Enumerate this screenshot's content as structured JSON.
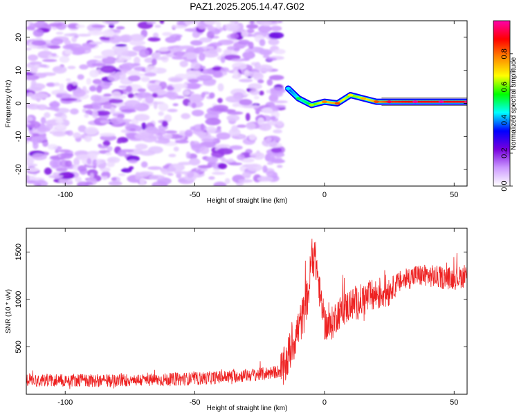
{
  "title": "PAZ1.2025.205.14.47.G02",
  "chart_data": [
    {
      "type": "heatmap",
      "xlabel": "Height of straight line (km)",
      "ylabel": "Frequency (Hz)",
      "xlim": [
        -115,
        55
      ],
      "ylim": [
        -25,
        25
      ],
      "x_ticks": [
        -100,
        -50,
        0,
        50
      ],
      "y_ticks": [
        -20,
        -10,
        0,
        10,
        20
      ],
      "colorbar": {
        "label": "Normalized spectral amplitude",
        "range": [
          0.0,
          1.0
        ],
        "ticks": [
          0.0,
          0.2,
          0.4,
          0.6,
          0.8
        ],
        "tick_labels": [
          "0.0",
          "0.2",
          "0.4",
          "0.6",
          "0.8"
        ],
        "colormap": [
          "#ffffff",
          "#cc99ff",
          "#7700dd",
          "#0000ff",
          "#00ffff",
          "#00ff00",
          "#ffff00",
          "#ff8800",
          "#ff0000",
          "#ff00aa"
        ]
      },
      "noise_region": {
        "x_range": [
          -115,
          -17
        ],
        "y_range": [
          -25,
          25
        ],
        "typical_amplitude": 0.1,
        "peak_amplitude": 0.2
      },
      "signal_ridge": [
        {
          "x": -14,
          "y": 4.5,
          "amplitude": 0.35
        },
        {
          "x": -10,
          "y": 1.5,
          "amplitude": 0.45
        },
        {
          "x": -5,
          "y": -0.5,
          "amplitude": 0.55
        },
        {
          "x": 0,
          "y": 0.5,
          "amplitude": 0.7
        },
        {
          "x": 5,
          "y": 0.0,
          "amplitude": 0.75
        },
        {
          "x": 10,
          "y": 2.5,
          "amplitude": 0.6
        },
        {
          "x": 15,
          "y": 1.5,
          "amplitude": 0.65
        },
        {
          "x": 20,
          "y": 0.5,
          "amplitude": 0.75
        },
        {
          "x": 25,
          "y": 0.5,
          "amplitude": 0.85
        },
        {
          "x": 35,
          "y": 0.5,
          "amplitude": 0.9
        },
        {
          "x": 45,
          "y": 0.5,
          "amplitude": 0.9
        },
        {
          "x": 55,
          "y": 0.5,
          "amplitude": 0.9
        }
      ]
    },
    {
      "type": "line",
      "xlabel": "Height of straight line (km)",
      "ylabel": "SNR (10 * v/v)",
      "xlim": [
        -115,
        55
      ],
      "ylim": [
        0,
        1750
      ],
      "x_ticks": [
        -100,
        -50,
        0,
        50
      ],
      "y_ticks": [
        500,
        1000,
        1500
      ],
      "color": "#ee2222",
      "series": [
        {
          "x": [
            -115,
            -105,
            -95,
            -85,
            -75,
            -65,
            -55,
            -45,
            -35,
            -25,
            -20,
            -16,
            -14,
            -12,
            -10,
            -8,
            -6,
            -5,
            -4,
            -3,
            -2,
            0,
            2,
            5,
            8,
            10,
            12,
            15,
            20,
            25,
            30,
            35,
            40,
            45,
            50,
            55
          ],
          "values": [
            150,
            150,
            150,
            140,
            150,
            150,
            160,
            170,
            190,
            210,
            230,
            250,
            400,
            550,
            700,
            850,
            1100,
            1450,
            1450,
            1350,
            1100,
            750,
            700,
            850,
            900,
            950,
            950,
            1000,
            1050,
            1100,
            1200,
            1250,
            1250,
            1230,
            1220,
            1250
          ]
        }
      ]
    }
  ]
}
